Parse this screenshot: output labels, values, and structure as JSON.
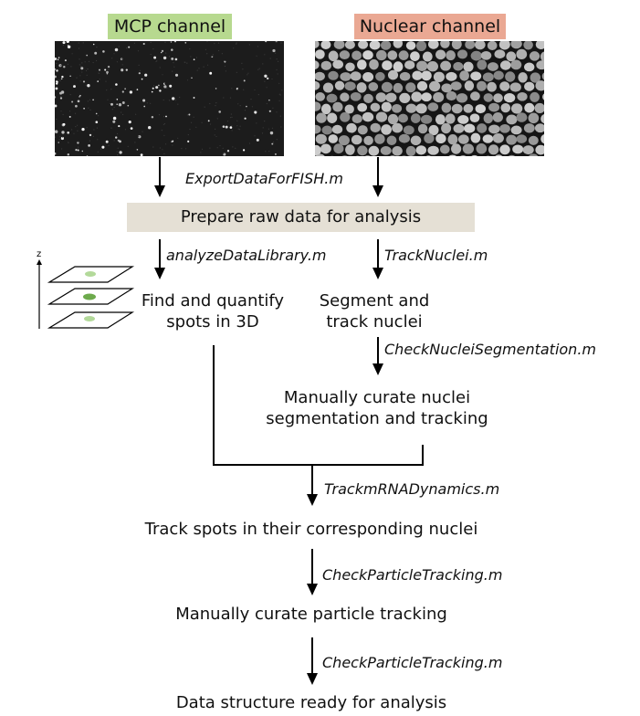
{
  "channels": {
    "mcp": {
      "label": "MCP channel",
      "color": "#b7d98f"
    },
    "nuclear": {
      "label": "Nuclear channel",
      "color": "#eaa893"
    }
  },
  "prepare_box": {
    "label": "Prepare raw data for analysis",
    "color": "#e5e0d5"
  },
  "scripts": {
    "export": "ExportDataForFISH.m",
    "analyze": "analyzeDataLibrary.m",
    "track_nuclei": "TrackNuclei.m",
    "check_nuclei": "CheckNucleiSegmentation.m",
    "track_mrna": "TrackmRNADynamics.m",
    "check_particle_1": "CheckParticleTracking.m",
    "check_particle_2": "CheckParticleTracking.m"
  },
  "steps": {
    "find_spots": [
      "Find and quantify",
      "spots in 3D"
    ],
    "segment": [
      "Segment and",
      "track nuclei"
    ],
    "curate_nuclei": [
      "Manually curate nuclei",
      "segmentation and tracking"
    ],
    "track_spots": "Track spots in their corresponding nuclei",
    "curate_particles": "Manually curate particle tracking",
    "ready": "Data structure ready for analysis"
  },
  "stack_icon": {
    "axis_label": "z",
    "spot_color": "#7fbf5f"
  }
}
